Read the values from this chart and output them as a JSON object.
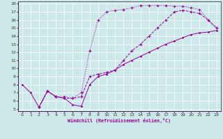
{
  "xlabel": "Windchill (Refroidissement éolien,°C)",
  "bg_color": "#cce8e8",
  "line_color": "#990099",
  "xmin": 0,
  "xmax": 23,
  "ymin": 5,
  "ymax": 18,
  "line1_x": [
    0,
    1,
    2,
    3,
    4,
    5,
    6,
    7,
    8,
    9,
    10,
    11,
    12,
    13,
    14,
    15,
    16,
    17,
    18,
    19,
    20,
    21,
    22,
    23
  ],
  "line1_y": [
    8.0,
    7.0,
    5.2,
    7.2,
    6.5,
    6.3,
    5.5,
    5.3,
    8.0,
    9.0,
    9.3,
    9.8,
    10.5,
    11.0,
    11.5,
    12.0,
    12.5,
    13.0,
    13.4,
    13.8,
    14.2,
    14.4,
    14.5,
    14.7
  ],
  "line2_x": [
    2,
    3,
    4,
    5,
    6,
    7,
    8,
    9,
    10,
    11,
    12,
    13,
    14,
    15,
    16,
    17,
    18,
    19,
    20,
    21,
    22,
    23
  ],
  "line2_y": [
    5.2,
    7.2,
    6.5,
    6.3,
    6.3,
    6.5,
    9.0,
    9.3,
    9.5,
    9.8,
    11.0,
    12.2,
    13.0,
    14.0,
    15.0,
    16.0,
    17.0,
    17.2,
    17.0,
    16.8,
    16.0,
    15.0
  ],
  "line3_x": [
    2,
    3,
    4,
    5,
    6,
    7,
    8,
    9,
    10,
    11,
    12,
    13,
    14,
    15,
    16,
    17,
    18,
    19,
    20,
    21,
    22,
    23
  ],
  "line3_y": [
    5.2,
    7.2,
    6.5,
    6.5,
    6.3,
    7.0,
    12.2,
    16.0,
    17.0,
    17.2,
    17.3,
    17.5,
    17.8,
    17.8,
    17.8,
    17.8,
    17.7,
    17.7,
    17.5,
    17.3,
    16.0,
    15.0
  ]
}
